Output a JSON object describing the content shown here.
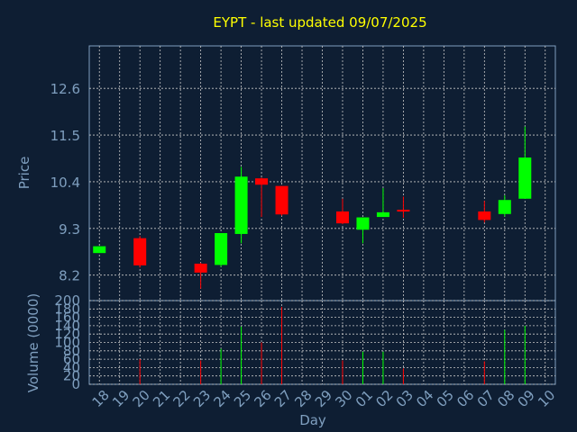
{
  "colors": {
    "background": "#0e1e33",
    "title": "#ffff00",
    "axis_text": "#7f9fbf",
    "grid": "#c8c8c8",
    "up": "#00ff00",
    "down": "#ff0000"
  },
  "chart_data": {
    "type": "candlestick",
    "title": "EYPT - last updated 09/07/2025",
    "xlabel": "Day",
    "ylabel": "Price",
    "volume_label": "Volume (0000)",
    "price_ticks": [
      "8.2",
      "9.3",
      "10.4",
      "11.5",
      "12.6"
    ],
    "volume_ticks": [
      "0",
      "20",
      "40",
      "60",
      "80",
      "100",
      "120",
      "140",
      "160",
      "180",
      "200"
    ],
    "price_range": [
      7.6,
      13.6
    ],
    "volume_range": [
      0,
      200
    ],
    "grid": true,
    "x_ticks": [
      "18",
      "19",
      "20",
      "21",
      "22",
      "23",
      "24",
      "25",
      "26",
      "27",
      "28",
      "29",
      "30",
      "01",
      "02",
      "03",
      "04",
      "05",
      "06",
      "07",
      "08",
      "09",
      "10"
    ],
    "candles": [
      {
        "day": "18",
        "open": 8.72,
        "close": 8.88,
        "high": 8.88,
        "low": 8.72,
        "volume": 0
      },
      {
        "day": "20",
        "open": 9.07,
        "close": 8.43,
        "high": 9.12,
        "low": 8.38,
        "volume": 60
      },
      {
        "day": "23",
        "open": 8.47,
        "close": 8.26,
        "high": 8.49,
        "low": 7.88,
        "volume": 57
      },
      {
        "day": "24",
        "open": 8.44,
        "close": 9.19,
        "high": 9.19,
        "low": 8.4,
        "volume": 85
      },
      {
        "day": "25",
        "open": 9.17,
        "close": 10.52,
        "high": 10.75,
        "low": 8.95,
        "volume": 138
      },
      {
        "day": "26",
        "open": 10.48,
        "close": 10.33,
        "high": 10.5,
        "low": 9.57,
        "volume": 100
      },
      {
        "day": "27",
        "open": 10.3,
        "close": 9.63,
        "high": 10.3,
        "low": 9.6,
        "volume": 185
      },
      {
        "day": "30",
        "open": 9.7,
        "close": 9.42,
        "high": 10.0,
        "low": 9.4,
        "volume": 57
      },
      {
        "day": "01",
        "open": 9.27,
        "close": 9.56,
        "high": 9.56,
        "low": 8.95,
        "volume": 78
      },
      {
        "day": "02",
        "open": 9.57,
        "close": 9.68,
        "high": 10.25,
        "low": 9.57,
        "volume": 78
      },
      {
        "day": "03",
        "open": 9.74,
        "close": 9.72,
        "high": 10.05,
        "low": 9.55,
        "volume": 38
      },
      {
        "day": "07",
        "open": 9.7,
        "close": 9.5,
        "high": 9.95,
        "low": 9.44,
        "volume": 55
      },
      {
        "day": "08",
        "open": 9.64,
        "close": 9.97,
        "high": 10.08,
        "low": 9.58,
        "volume": 130
      },
      {
        "day": "09",
        "open": 10.0,
        "close": 10.97,
        "high": 11.7,
        "low": 10.0,
        "volume": 140
      }
    ]
  }
}
